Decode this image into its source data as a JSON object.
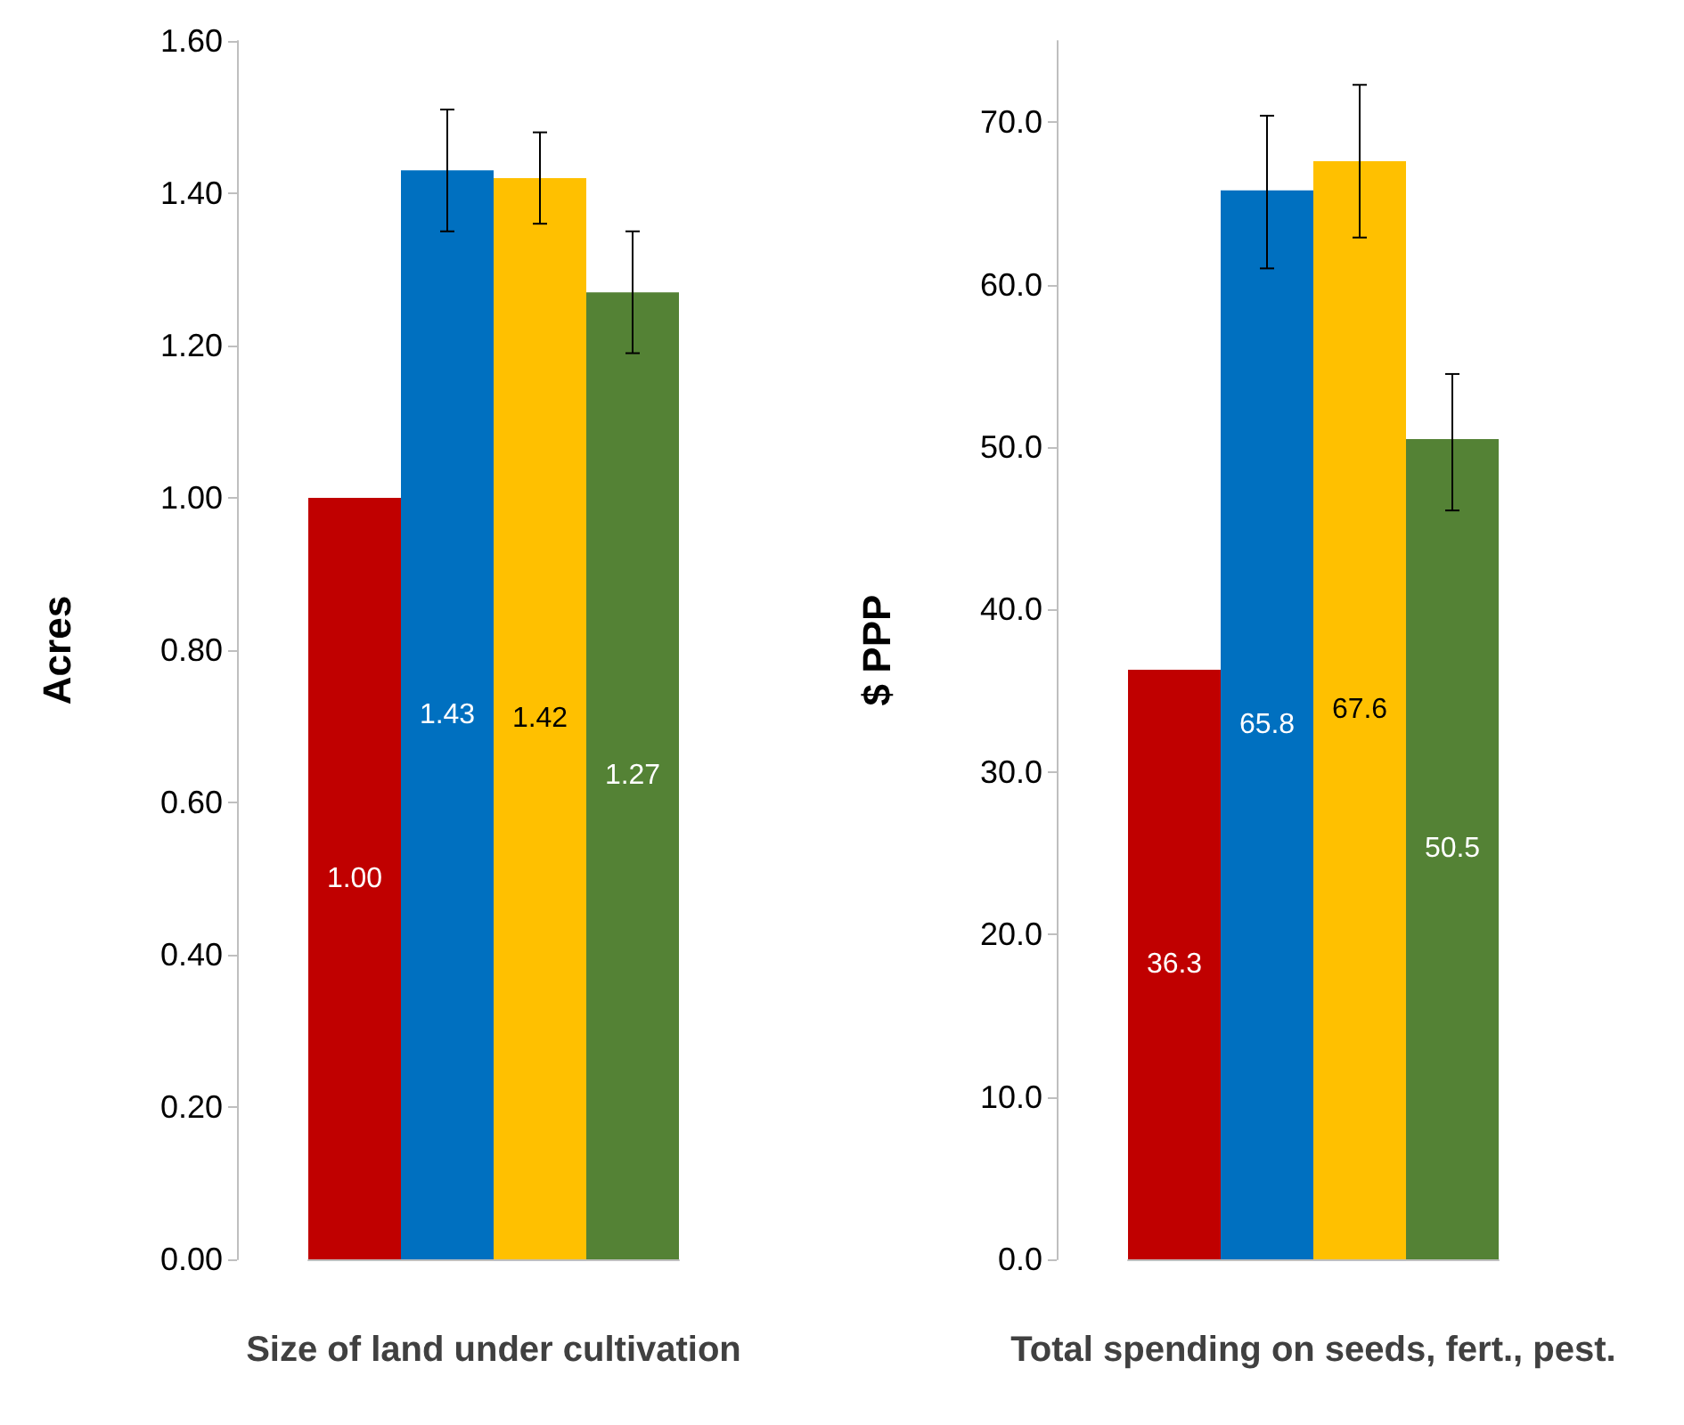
{
  "chart_data": [
    {
      "type": "bar",
      "xlabel": "Size of land under cultivation",
      "ylabel": "Acres",
      "categories": [
        null,
        null,
        null,
        null
      ],
      "values": [
        1.0,
        1.43,
        1.42,
        1.27
      ],
      "colors": [
        "#c00000",
        "#0070c0",
        "#ffc000",
        "#548235"
      ],
      "value_labels": [
        "1.00",
        "1.43",
        "1.42",
        "1.27"
      ],
      "errors": [
        null,
        [
          1.35,
          1.51
        ],
        [
          1.36,
          1.48
        ],
        [
          1.19,
          1.35
        ]
      ],
      "ylim": [
        0,
        1.6
      ],
      "yticks": [
        {
          "value": 0,
          "label": "0.00"
        },
        {
          "value": 0.2,
          "label": "0.20"
        },
        {
          "value": 0.4,
          "label": "0.40"
        },
        {
          "value": 0.6,
          "label": "0.60"
        },
        {
          "value": 0.8,
          "label": "0.80"
        },
        {
          "value": 1,
          "label": "1.00"
        },
        {
          "value": 1.2,
          "label": "1.20"
        },
        {
          "value": 1.4,
          "label": "1.40"
        },
        {
          "value": 1.6,
          "label": "1.60"
        }
      ],
      "grid": false
    },
    {
      "type": "bar",
      "xlabel": "Total spending on seeds, fert., pest.",
      "ylabel": "$ PPP",
      "categories": [
        null,
        null,
        null,
        null
      ],
      "values": [
        36.3,
        65.8,
        67.6,
        50.5
      ],
      "colors": [
        "#c00000",
        "#0070c0",
        "#ffc000",
        "#548235"
      ],
      "data_labels": true,
      "errors": [
        null,
        [
          61.0,
          70.4
        ],
        [
          62.9,
          72.3
        ],
        [
          46.1,
          54.5
        ]
      ],
      "ylim": [
        0,
        75
      ],
      "yticks": [
        {
          "value": 0,
          "label": "0.0"
        },
        {
          "value": 10,
          "label": "10.0"
        },
        {
          "value": 20,
          "label": "20.0"
        },
        {
          "value": 30,
          "label": "30.0"
        },
        {
          "value": 40,
          "label": "40.0"
        },
        {
          "value": 50,
          "label": "50.0"
        },
        {
          "value": 60,
          "label": "60.0"
        },
        {
          "value": 70,
          "label": "70.0"
        }
      ],
      "grid": false
    }
  ]
}
